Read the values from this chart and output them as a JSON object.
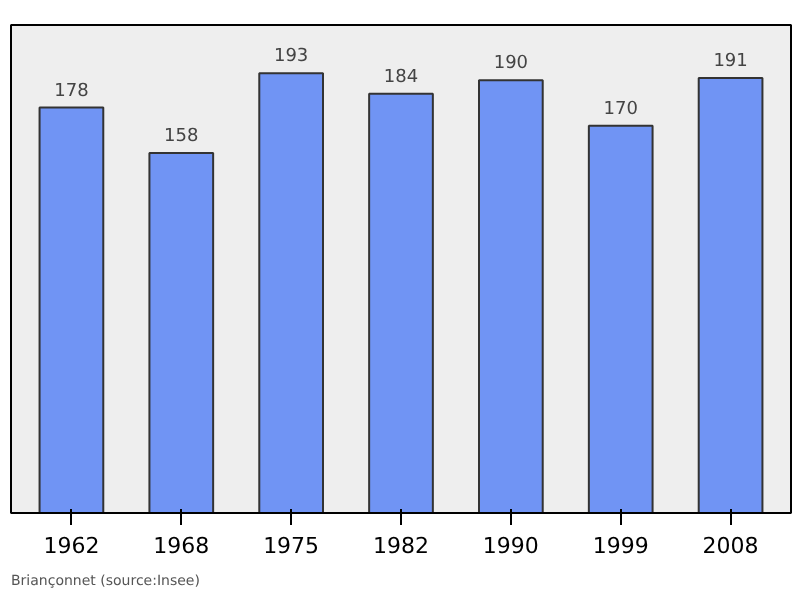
{
  "chart_data": {
    "type": "bar",
    "categories": [
      "1962",
      "1968",
      "1975",
      "1982",
      "1990",
      "1999",
      "2008"
    ],
    "values": [
      178,
      158,
      193,
      184,
      190,
      170,
      191
    ],
    "color": "#7094f4",
    "data_labels": true,
    "grid": false,
    "annotations": [
      "Briançonnet    (source:Insee)"
    ]
  }
}
